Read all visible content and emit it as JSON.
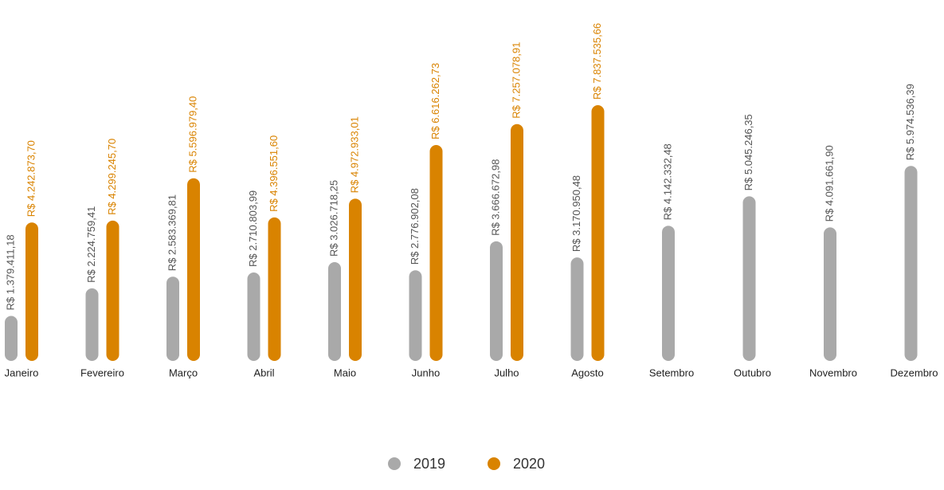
{
  "chart_data": {
    "type": "bar",
    "categories": [
      "Janeiro",
      "Fevereiro",
      "Março",
      "Abril",
      "Maio",
      "Junho",
      "Julho",
      "Agosto",
      "Setembro",
      "Outubro",
      "Novembro",
      "Dezembro"
    ],
    "series": [
      {
        "name": "2019",
        "color": "#a9a9a9",
        "values": [
          1379411.18,
          2224759.41,
          2583369.81,
          2710803.99,
          3026718.25,
          2776902.08,
          3666672.98,
          3170950.48,
          4142332.48,
          5045246.35,
          4091661.9,
          5974536.39
        ],
        "value_labels": [
          "R$ 1.379.411,18",
          "R$ 2.224.759,41",
          "R$ 2.583.369,81",
          "R$ 2.710.803,99",
          "R$ 3.026.718,25",
          "R$ 2.776.902,08",
          "R$ 3.666.672,98",
          "R$ 3.170.950,48",
          "R$ 4.142.332,48",
          "R$ 5.045.246,35",
          "R$ 4.091.661,90",
          "R$ 5.974.536,39"
        ]
      },
      {
        "name": "2020",
        "color": "#d98300",
        "values": [
          4242873.7,
          4299245.7,
          5596979.4,
          4396551.6,
          4972933.01,
          6616262.73,
          7257078.91,
          7837535.66,
          null,
          null,
          null,
          null
        ],
        "value_labels": [
          "R$ 4.242.873,70",
          "R$ 4.299.245,70",
          "R$ 5.596.979,40",
          "R$ 4.396.551,60",
          "R$ 4.972.933,01",
          "R$ 6.616.262,73",
          "R$ 7.257.078,91",
          "R$ 7.837.535,66",
          null,
          null,
          null,
          null
        ]
      }
    ],
    "legend": "bottom"
  }
}
